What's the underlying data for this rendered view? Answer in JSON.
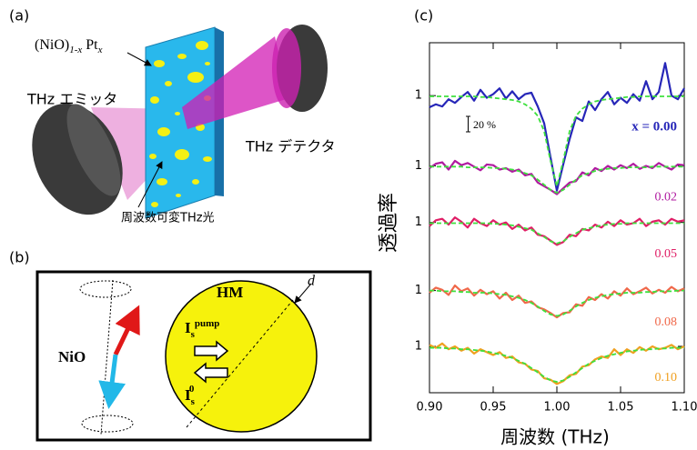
{
  "panels": {
    "a": {
      "label": "(a)",
      "sample": [
        "(NiO)",
        "1-x",
        "Pt",
        "x"
      ],
      "emitter": "THz エミッタ",
      "detector": "THz デテクタ",
      "beam": "周波数可変THz光"
    },
    "b": {
      "label": "(b)",
      "afm": "NiO",
      "hm": "HM",
      "thickness": "d",
      "pump_current": [
        "I",
        "s",
        "pump"
      ],
      "spin_current": [
        "I",
        "s",
        "0"
      ]
    }
  },
  "chart_data": {
    "type": "line",
    "label": "(c)",
    "x_label": "周波数 (THz)",
    "y_label": "透過率",
    "scale_bar_label": "20 %",
    "x": [
      0.9,
      0.905,
      0.91,
      0.915,
      0.92,
      0.925,
      0.93,
      0.935,
      0.94,
      0.945,
      0.95,
      0.955,
      0.96,
      0.965,
      0.97,
      0.975,
      0.98,
      0.985,
      0.99,
      0.995,
      1.0,
      1.005,
      1.01,
      1.015,
      1.02,
      1.025,
      1.03,
      1.035,
      1.04,
      1.045,
      1.05,
      1.055,
      1.06,
      1.065,
      1.07,
      1.075,
      1.08,
      1.085,
      1.09,
      1.095,
      1.1
    ],
    "xlim": [
      0.9,
      1.1
    ],
    "xticks": [
      {
        "value": 0.9,
        "label": "0.90"
      },
      0.95,
      {
        "value": 1,
        "label": "1.00"
      },
      1.05,
      {
        "value": 1.1,
        "label": "1.10"
      }
    ],
    "ylim": [
      -3.1,
      1.73
    ],
    "yticks": [
      1,
      {
        "value": 0.03,
        "label": "1"
      },
      {
        "value": -0.75,
        "label": "1"
      },
      {
        "value": -1.69,
        "label": "1"
      },
      {
        "value": -2.46,
        "label": "1"
      }
    ],
    "fit_color": "#3ee03e",
    "series": [
      {
        "name": "x = 0.00",
        "color": "#2626b8",
        "values": [
          0.84,
          0.88,
          0.85,
          0.95,
          0.9,
          0.98,
          1.05,
          0.93,
          1.08,
          0.97,
          1.02,
          1.1,
          0.96,
          1.06,
          0.95,
          1.02,
          1.04,
          0.85,
          0.62,
          0.15,
          -0.31,
          0.05,
          0.4,
          0.7,
          0.65,
          0.92,
          0.8,
          0.95,
          1.05,
          0.88,
          0.97,
          0.9,
          1.02,
          0.93,
          1.2,
          0.95,
          1.05,
          1.45,
          1.0,
          0.95,
          1.1
        ],
        "fit": [
          0.99,
          0.99,
          0.99,
          0.99,
          0.99,
          0.99,
          0.99,
          0.99,
          0.98,
          0.98,
          0.97,
          0.96,
          0.95,
          0.94,
          0.92,
          0.88,
          0.82,
          0.72,
          0.51,
          0.1,
          -0.25,
          0.1,
          0.51,
          0.72,
          0.82,
          0.88,
          0.92,
          0.94,
          0.95,
          0.96,
          0.97,
          0.98,
          0.98,
          0.99,
          0.99,
          0.99,
          0.99,
          0.99,
          0.99,
          0.99,
          0.99
        ]
      },
      {
        "name": "0.02",
        "color": "#b01aa0",
        "values": [
          0.0,
          0.06,
          0.08,
          -0.02,
          0.1,
          0.04,
          0.07,
          0.02,
          -0.03,
          0.05,
          0.04,
          -0.02,
          0.0,
          -0.05,
          -0.02,
          -0.1,
          -0.08,
          -0.2,
          -0.25,
          -0.3,
          -0.36,
          -0.28,
          -0.2,
          -0.18,
          -0.06,
          -0.1,
          0.0,
          -0.04,
          0.03,
          -0.02,
          0.04,
          0.0,
          0.06,
          -0.01,
          0.03,
          0.0,
          0.07,
          0.02,
          -0.02,
          0.05,
          0.04
        ],
        "fit": [
          0.02,
          0.02,
          0.02,
          0.02,
          0.02,
          0.02,
          0.01,
          0.01,
          0.01,
          0.01,
          0.0,
          0.0,
          -0.01,
          -0.02,
          -0.04,
          -0.07,
          -0.1,
          -0.16,
          -0.23,
          -0.3,
          -0.34,
          -0.3,
          -0.23,
          -0.16,
          -0.1,
          -0.07,
          -0.04,
          -0.02,
          -0.01,
          0.0,
          0.0,
          0.01,
          0.01,
          0.01,
          0.01,
          0.02,
          0.02,
          0.02,
          0.02,
          0.02,
          0.02
        ]
      },
      {
        "name": "0.05",
        "color": "#e01e66",
        "values": [
          -0.8,
          -0.72,
          -0.7,
          -0.78,
          -0.68,
          -0.74,
          -0.82,
          -0.7,
          -0.76,
          -0.8,
          -0.72,
          -0.78,
          -0.75,
          -0.84,
          -0.78,
          -0.86,
          -0.82,
          -0.92,
          -0.94,
          -1.0,
          -1.06,
          -1.02,
          -0.92,
          -0.94,
          -0.84,
          -0.86,
          -0.78,
          -0.82,
          -0.74,
          -0.8,
          -0.72,
          -0.78,
          -0.76,
          -0.7,
          -0.8,
          -0.74,
          -0.72,
          -0.78,
          -0.7,
          -0.74,
          -0.72
        ],
        "fit": [
          -0.76,
          -0.76,
          -0.76,
          -0.76,
          -0.76,
          -0.76,
          -0.76,
          -0.76,
          -0.76,
          -0.76,
          -0.77,
          -0.77,
          -0.78,
          -0.79,
          -0.81,
          -0.83,
          -0.85,
          -0.9,
          -0.95,
          -1.01,
          -1.04,
          -1.01,
          -0.95,
          -0.9,
          -0.85,
          -0.83,
          -0.81,
          -0.79,
          -0.78,
          -0.77,
          -0.77,
          -0.76,
          -0.76,
          -0.76,
          -0.76,
          -0.76,
          -0.76,
          -0.76,
          -0.76,
          -0.76,
          -0.76
        ]
      },
      {
        "name": "0.08",
        "color": "#f0684a",
        "values": [
          -1.72,
          -1.65,
          -1.68,
          -1.75,
          -1.62,
          -1.7,
          -1.66,
          -1.76,
          -1.68,
          -1.74,
          -1.7,
          -1.8,
          -1.72,
          -1.82,
          -1.76,
          -1.86,
          -1.84,
          -1.92,
          -1.95,
          -2.0,
          -2.06,
          -2.0,
          -1.99,
          -1.88,
          -1.9,
          -1.78,
          -1.82,
          -1.74,
          -1.8,
          -1.7,
          -1.76,
          -1.66,
          -1.74,
          -1.7,
          -1.65,
          -1.73,
          -1.68,
          -1.72,
          -1.64,
          -1.7,
          -1.66
        ],
        "fit": [
          -1.69,
          -1.69,
          -1.7,
          -1.7,
          -1.7,
          -1.71,
          -1.71,
          -1.72,
          -1.72,
          -1.72,
          -1.73,
          -1.74,
          -1.75,
          -1.77,
          -1.79,
          -1.82,
          -1.86,
          -1.91,
          -1.97,
          -2.02,
          -2.04,
          -2.02,
          -1.97,
          -1.91,
          -1.86,
          -1.82,
          -1.79,
          -1.77,
          -1.75,
          -1.74,
          -1.73,
          -1.72,
          -1.72,
          -1.72,
          -1.71,
          -1.71,
          -1.7,
          -1.7,
          -1.7,
          -1.69,
          -1.69
        ]
      },
      {
        "name": "0.10",
        "color": "#f0a020",
        "values": [
          -2.44,
          -2.48,
          -2.42,
          -2.5,
          -2.46,
          -2.52,
          -2.48,
          -2.56,
          -2.5,
          -2.54,
          -2.58,
          -2.54,
          -2.62,
          -2.6,
          -2.68,
          -2.7,
          -2.78,
          -2.8,
          -2.9,
          -2.92,
          -2.98,
          -2.94,
          -2.86,
          -2.84,
          -2.74,
          -2.72,
          -2.64,
          -2.6,
          -2.62,
          -2.5,
          -2.58,
          -2.5,
          -2.55,
          -2.47,
          -2.52,
          -2.46,
          -2.5,
          -2.48,
          -2.44,
          -2.5,
          -2.46
        ],
        "fit": [
          -2.48,
          -2.48,
          -2.48,
          -2.49,
          -2.49,
          -2.5,
          -2.5,
          -2.51,
          -2.52,
          -2.53,
          -2.55,
          -2.57,
          -2.59,
          -2.62,
          -2.66,
          -2.7,
          -2.76,
          -2.82,
          -2.88,
          -2.93,
          -2.95,
          -2.93,
          -2.88,
          -2.82,
          -2.76,
          -2.7,
          -2.66,
          -2.62,
          -2.59,
          -2.57,
          -2.55,
          -2.53,
          -2.52,
          -2.51,
          -2.5,
          -2.5,
          -2.49,
          -2.49,
          -2.48,
          -2.48,
          -2.48
        ]
      }
    ]
  }
}
